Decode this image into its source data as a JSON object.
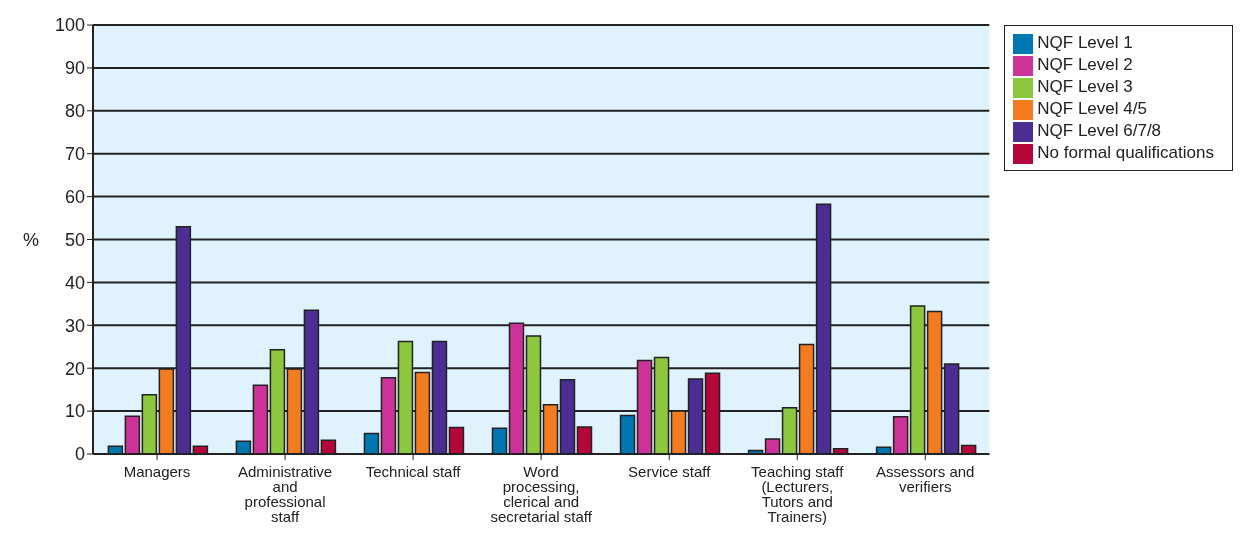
{
  "chart_data": {
    "type": "bar",
    "ylabel": "%",
    "categories": [
      "Managers",
      "Administrative and professional staff",
      "Technical staff",
      "Word processing, clerical and secretarial staff",
      "Service staff",
      "Teaching staff (Lecturers, Tutors and Trainers)",
      "Assessors and verifiers"
    ],
    "series": [
      {
        "name": "NQF Level 1",
        "color": "#0077b0",
        "values": [
          1.8,
          3,
          4.8,
          6,
          9,
          0.8,
          1.6
        ]
      },
      {
        "name": "NQF Level 2",
        "color": "#cc3399",
        "values": [
          8.8,
          16,
          17.8,
          30.5,
          21.8,
          3.5,
          8.7
        ]
      },
      {
        "name": "NQF Level 3",
        "color": "#8dc63f",
        "values": [
          13.8,
          24.3,
          26.2,
          27.5,
          22.5,
          10.8,
          34.5
        ]
      },
      {
        "name": "NQF Level 4/5",
        "color": "#f47b20",
        "values": [
          19.8,
          19.8,
          19,
          11.5,
          10,
          25.5,
          33.2
        ]
      },
      {
        "name": "NQF Level 6/7/8",
        "color": "#4b2e91",
        "values": [
          53,
          33.5,
          26.2,
          17.3,
          17.5,
          58.2,
          21
        ]
      },
      {
        "name": "No formal qualifications",
        "color": "#b5063a",
        "values": [
          1.8,
          3.2,
          6.2,
          6.3,
          18.8,
          1.2,
          2
        ]
      }
    ],
    "ylim": [
      0,
      100
    ],
    "yticks": [
      0,
      10,
      20,
      30,
      40,
      50,
      60,
      70,
      80,
      90,
      100
    ],
    "grid": "y",
    "legend": "top right"
  }
}
